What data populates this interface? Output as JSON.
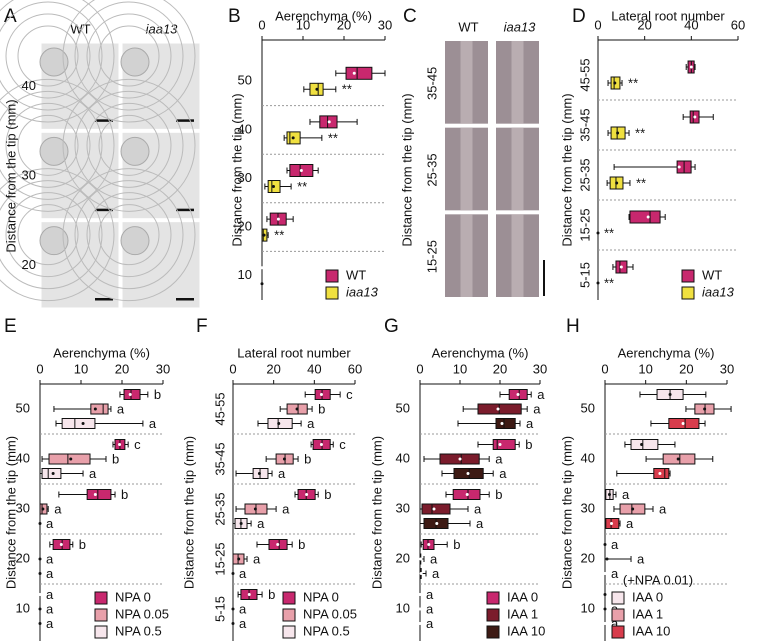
{
  "chart_data": [
    {
      "type": "image",
      "label": "A",
      "columns": [
        "WT",
        "iaa13"
      ],
      "rows": [
        "40",
        "30",
        "20"
      ],
      "ylabel": "Distance from the tip (mm)"
    },
    {
      "type": "boxplot",
      "label": "B",
      "title": "Aerenchyma (%)",
      "ylabel": "Distance from the tip (mm)",
      "categories": [
        "50",
        "40",
        "30",
        "20",
        "10"
      ],
      "xlim": [
        0,
        30
      ],
      "xticks": [
        0,
        10,
        20,
        30
      ],
      "series": [
        {
          "name": "WT",
          "color": "#c8286e",
          "boxes": [
            [
              18,
              20.5,
              23.2,
              26.8,
              30,
              22.5
            ],
            [
              11.7,
              14.1,
              16,
              18.3,
              23.2,
              16.4
            ],
            [
              6.1,
              6.8,
              9.3,
              12.4,
              13.7,
              9.6
            ],
            [
              1.2,
              2,
              3.9,
              5.9,
              7.6,
              4
            ],
            [
              0,
              0,
              0,
              0,
              0,
              0
            ]
          ],
          "marks": [
            "",
            "",
            "",
            "",
            ""
          ]
        },
        {
          "name": "iaa13",
          "color": "#f0e040",
          "italic": true,
          "boxes": [
            [
              10.2,
              11.7,
              13.7,
              14.9,
              18,
              13.4
            ],
            [
              5.4,
              6.1,
              6.8,
              9.3,
              14.6,
              7.6
            ],
            [
              0.7,
              1.5,
              2.4,
              4.4,
              7.1,
              2.8
            ],
            [
              0,
              0,
              0.3,
              1.2,
              1.5,
              0.5
            ],
            [
              0,
              0,
              0,
              0,
              0,
              0
            ]
          ],
          "marks": [
            "**",
            "**",
            "**",
            "**",
            null
          ]
        }
      ]
    },
    {
      "type": "image",
      "label": "C",
      "columns": [
        "WT",
        "iaa13"
      ],
      "rows": [
        "35-45",
        "25-35",
        "15-25"
      ],
      "ylabel": "Distance from the tip (mm)"
    },
    {
      "type": "boxplot",
      "label": "D",
      "title": "Lateral root number",
      "ylabel": "Distance from the tip (mm)",
      "categories": [
        "45-55",
        "35-45",
        "25-35",
        "15-25",
        "5-15"
      ],
      "xlim": [
        0,
        60
      ],
      "xticks": [
        0,
        20,
        40,
        60
      ],
      "series": [
        {
          "name": "WT",
          "color": "#c8286e",
          "boxes": [
            [
              37.8,
              38.6,
              40,
              41.2,
              41.6,
              40
            ],
            [
              36.5,
              39.5,
              40.8,
              43.3,
              49.4,
              41.5
            ],
            [
              6.9,
              33.9,
              36.9,
              39.9,
              41.6,
              34.8
            ],
            [
              13.3,
              13.7,
              22.3,
              26.6,
              28.8,
              21.5
            ],
            [
              6.4,
              7.7,
              9.4,
              12.4,
              15,
              10
            ]
          ]
        },
        {
          "name": "iaa13",
          "color": "#f0e040",
          "italic": true,
          "boxes": [
            [
              4.3,
              5.6,
              6.9,
              9.4,
              10.3,
              7.2
            ],
            [
              4.3,
              5.6,
              8.2,
              11.6,
              13.3,
              8.4
            ],
            [
              3.9,
              5.2,
              7.7,
              10.7,
              13.7,
              8
            ],
            [
              0,
              0,
              0,
              0,
              0,
              0
            ],
            [
              0,
              0,
              0,
              0,
              0,
              0
            ]
          ],
          "marks": [
            "**",
            "**",
            "**",
            "**",
            "**"
          ]
        }
      ]
    },
    {
      "type": "boxplot",
      "label": "E",
      "title": "Aerenchyma (%)",
      "ylabel": "Distance from the tip (mm)",
      "categories": [
        "50",
        "40",
        "30",
        "20",
        "10"
      ],
      "xlim": [
        0,
        30
      ],
      "xticks": [
        0,
        10,
        20,
        30
      ],
      "series": [
        {
          "name": "NPA 0",
          "color": "#c8286e",
          "boxes": [
            [
              19.5,
              20.5,
              22.2,
              24.4,
              26.3,
              22
            ],
            [
              17.8,
              18.3,
              19.5,
              20.7,
              21.5,
              19.4
            ],
            [
              4.6,
              11.5,
              14.1,
              17.3,
              18.3,
              13.5
            ],
            [
              2.4,
              3.2,
              5.4,
              7.3,
              8,
              5.2
            ],
            [
              0,
              0,
              0,
              0,
              0,
              0
            ]
          ],
          "marks": [
            "b",
            "c",
            "b",
            "b",
            "a"
          ]
        },
        {
          "name": "NPA 0.05",
          "color": "#e8a0aa",
          "boxes": [
            [
              3.4,
              12.4,
              15.4,
              16.6,
              17.3,
              13.5
            ],
            [
              0.5,
              2.2,
              6.8,
              12.2,
              16.1,
              7.5
            ],
            [
              0,
              0,
              0.5,
              1.7,
              2,
              0.7
            ],
            [
              0,
              0,
              0,
              0,
              0,
              0
            ],
            [
              0,
              0,
              0,
              0,
              0,
              0
            ]
          ],
          "marks": [
            "a",
            "b",
            "a",
            "a",
            "a"
          ]
        },
        {
          "name": "NPA 0.5",
          "color": "#f7e6ec",
          "boxes": [
            [
              3.9,
              5.4,
              8.5,
              13.4,
              25.1,
              10.5
            ],
            [
              0,
              0.5,
              2,
              5.1,
              10.5,
              3.2
            ],
            [
              0,
              0,
              0,
              0,
              0,
              0
            ],
            [
              0,
              0,
              0,
              0,
              0,
              0
            ],
            [
              0,
              0,
              0,
              0,
              0,
              0
            ]
          ],
          "marks": [
            "a",
            "a",
            "a",
            "a",
            "a"
          ]
        }
      ]
    },
    {
      "type": "boxplot",
      "label": "F",
      "title": "Lateral root number",
      "ylabel": "Distance from the tip (mm)",
      "categories": [
        "45-55",
        "35-45",
        "25-35",
        "15-25",
        "5-15"
      ],
      "xlim": [
        0,
        60
      ],
      "xticks": [
        0,
        20,
        40,
        60
      ],
      "series": [
        {
          "name": "NPA 0",
          "color": "#c8286e",
          "boxes": [
            [
              35.5,
              40.4,
              43.8,
              47.8,
              52.7,
              43.5
            ],
            [
              38.4,
              39.4,
              43.8,
              47.8,
              49.3,
              43.5
            ],
            [
              30.5,
              32,
              36,
              40.4,
              41.9,
              36.2
            ],
            [
              11.8,
              17.7,
              22.7,
              26.6,
              29.1,
              22
            ],
            [
              2.5,
              3.9,
              7.9,
              11.8,
              14.3,
              8
            ]
          ],
          "marks": [
            "c",
            "c",
            "b",
            "b",
            "b"
          ]
        },
        {
          "name": "NPA 0.05",
          "color": "#e8a0aa",
          "boxes": [
            [
              23.2,
              26.6,
              32,
              36.5,
              38.9,
              31.5
            ],
            [
              16.3,
              21.2,
              25.6,
              29.6,
              32,
              25.3
            ],
            [
              1.5,
              5.9,
              11.3,
              16.7,
              21.2,
              11
            ],
            [
              0,
              0,
              2.5,
              5.4,
              6.9,
              2.8
            ],
            [
              0,
              0,
              0,
              0,
              0,
              0
            ]
          ],
          "marks": [
            "b",
            "b",
            "a",
            "a",
            "a"
          ]
        },
        {
          "name": "NPA 0.5",
          "color": "#f7e6ec",
          "boxes": [
            [
              12.3,
              17.2,
              22.2,
              29.1,
              33.5,
              22.5
            ],
            [
              1.5,
              9.9,
              13.3,
              17.2,
              19.2,
              13
            ],
            [
              0,
              1,
              3.9,
              6.9,
              8.9,
              4
            ],
            [
              0,
              0,
              0,
              0,
              0,
              0
            ],
            [
              0,
              0,
              0,
              0,
              0,
              0
            ]
          ],
          "marks": [
            "a",
            "a",
            "a",
            "a",
            "a"
          ]
        }
      ]
    },
    {
      "type": "boxplot",
      "label": "G",
      "title": "Aerenchyma (%)",
      "ylabel": "Distance from the tip (mm)",
      "categories": [
        "50",
        "40",
        "30",
        "20",
        "10"
      ],
      "xlim": [
        0,
        30
      ],
      "xticks": [
        0,
        10,
        20,
        30
      ],
      "series": [
        {
          "name": "IAA 0",
          "color": "#c8286e",
          "boxes": [
            [
              20,
              22.3,
              24.8,
              26.8,
              27.8,
              24.5
            ],
            [
              14.5,
              18.3,
              19.3,
              23.8,
              24.8,
              20
            ],
            [
              6.5,
              8.3,
              12,
              15,
              17.3,
              11.8
            ],
            [
              0.3,
              0.8,
              2,
              3.5,
              6.8,
              2.2
            ],
            [
              0,
              0,
              0,
              0,
              0,
              0
            ]
          ],
          "marks": [
            "a",
            "b",
            "b",
            "b",
            "a"
          ]
        },
        {
          "name": "IAA 1",
          "color": "#7b1c2c",
          "boxes": [
            [
              10.8,
              14.5,
              19.8,
              25.3,
              26.8,
              19.5
            ],
            [
              1,
              5,
              10.3,
              14.8,
              17.3,
              10
            ],
            [
              0,
              0.5,
              3,
              7.5,
              12,
              3.5
            ],
            [
              0,
              0,
              0,
              0.2,
              1,
              0.2
            ],
            [
              0,
              0,
              0,
              0,
              0,
              0
            ]
          ],
          "marks": [
            "a",
            "a",
            "a",
            "a",
            "a"
          ]
        },
        {
          "name": "IAA 10",
          "color": "#3d1a14",
          "boxes": [
            [
              9.5,
              19,
              21,
              23.8,
              25,
              20.5
            ],
            [
              5.5,
              8.5,
              12.3,
              15.8,
              18.3,
              12
            ],
            [
              0,
              1,
              4,
              7,
              12.5,
              4.2
            ],
            [
              0,
              0,
              0,
              0.3,
              1.5,
              0.3
            ],
            [
              0,
              0,
              0,
              0,
              0,
              0
            ]
          ],
          "marks": [
            "a",
            "a",
            "a",
            "a",
            "a"
          ]
        }
      ]
    },
    {
      "type": "boxplot",
      "label": "H",
      "title": "Aerenchyma (%)",
      "ylabel": "Distance from the tip (mm)",
      "legend_title": "(+NPA 0.01)",
      "categories": [
        "50",
        "40",
        "30",
        "20",
        "10"
      ],
      "xlim": [
        0,
        30
      ],
      "xticks": [
        0,
        10,
        20,
        30
      ],
      "series": [
        {
          "name": "IAA 0",
          "color": "#f7e6ec",
          "boxes": [
            [
              8.6,
              12.8,
              16,
              19.2,
              24.8,
              16
            ],
            [
              4.9,
              6.4,
              9.3,
              13,
              17.2,
              9
            ],
            [
              0,
              0.2,
              1.2,
              2,
              2.7,
              1.1
            ],
            [
              0,
              0,
              0,
              0,
              0,
              0
            ],
            [
              0,
              0,
              0,
              0,
              0,
              0
            ]
          ],
          "marks": [
            null,
            null,
            "a",
            "a",
            "a"
          ]
        },
        {
          "name": "IAA 1",
          "color": "#e8a0aa",
          "boxes": [
            [
              19.9,
              22.1,
              24.6,
              26.8,
              31,
              24.5
            ],
            [
              10.1,
              14.3,
              18.4,
              22.1,
              26.5,
              18
            ],
            [
              2.2,
              3.7,
              6.6,
              9.8,
              11.8,
              6.8
            ],
            [
              0,
              0,
              0,
              0,
              6.4,
              0.5
            ],
            [
              0,
              0,
              0,
              0,
              0,
              0
            ]
          ],
          "marks": [
            null,
            null,
            "a",
            "a",
            "a"
          ]
        },
        {
          "name": "IAA 10",
          "color": "#d83c4c",
          "boxes": [
            [
              11.3,
              15.7,
              19.7,
              23.1,
              24.6,
              19.2
            ],
            [
              2.9,
              12,
              14.7,
              15.7,
              16,
              13.5
            ],
            [
              0,
              0.2,
              1.5,
              3.4,
              3.7,
              1.6
            ],
            [
              0,
              0,
              0,
              0,
              0,
              0
            ],
            [
              0,
              0,
              0,
              0,
              0,
              0
            ]
          ],
          "marks": [
            null,
            null,
            "a",
            "a",
            "a"
          ]
        }
      ]
    }
  ]
}
